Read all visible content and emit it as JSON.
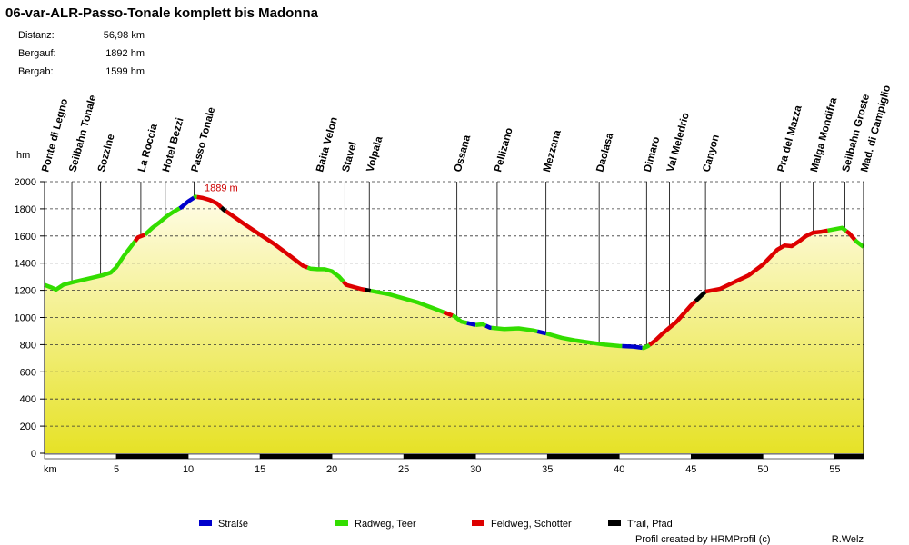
{
  "chart_data": {
    "type": "area",
    "title": "06-var-ALR-Passo-Tonale komplett bis Madonna",
    "stats": [
      {
        "label": "Distanz:",
        "value": "56,98 km"
      },
      {
        "label": "Bergauf:",
        "value": "1892 hm"
      },
      {
        "label": "Bergab:",
        "value": "1599 hm"
      }
    ],
    "xlabel": "km",
    "ylabel": "hm",
    "xlim": [
      0,
      57
    ],
    "ylim": [
      0,
      2000
    ],
    "x_ticks": [
      "5",
      "10",
      "15",
      "20",
      "25",
      "30",
      "35",
      "40",
      "45",
      "50",
      "55"
    ],
    "y_ticks": [
      "0",
      "200",
      "400",
      "600",
      "800",
      "1000",
      "1200",
      "1400",
      "1600",
      "1800",
      "2000"
    ],
    "max_label": "1889 m",
    "max_point": {
      "x": 10.5,
      "y": 1889
    },
    "profile": [
      [
        0,
        1240
      ],
      [
        0.5,
        1220
      ],
      [
        0.8,
        1205
      ],
      [
        1.3,
        1240
      ],
      [
        2,
        1260
      ],
      [
        3,
        1285
      ],
      [
        4,
        1310
      ],
      [
        4.6,
        1330
      ],
      [
        5,
        1370
      ],
      [
        5.5,
        1450
      ],
      [
        6,
        1520
      ],
      [
        6.5,
        1590
      ],
      [
        7,
        1610
      ],
      [
        7.5,
        1660
      ],
      [
        8,
        1700
      ],
      [
        8.5,
        1745
      ],
      [
        9,
        1780
      ],
      [
        9.5,
        1810
      ],
      [
        10,
        1855
      ],
      [
        10.5,
        1889
      ],
      [
        11,
        1880
      ],
      [
        11.5,
        1865
      ],
      [
        12,
        1840
      ],
      [
        12.5,
        1790
      ],
      [
        13,
        1755
      ],
      [
        14,
        1680
      ],
      [
        15,
        1610
      ],
      [
        16,
        1540
      ],
      [
        17,
        1460
      ],
      [
        18,
        1380
      ],
      [
        18.5,
        1360
      ],
      [
        19,
        1355
      ],
      [
        19.5,
        1355
      ],
      [
        20,
        1340
      ],
      [
        20.5,
        1300
      ],
      [
        21,
        1240
      ],
      [
        21.5,
        1225
      ],
      [
        22,
        1210
      ],
      [
        22.5,
        1200
      ],
      [
        23,
        1190
      ],
      [
        24,
        1170
      ],
      [
        25,
        1140
      ],
      [
        26,
        1110
      ],
      [
        27,
        1070
      ],
      [
        28,
        1030
      ],
      [
        28.5,
        1010
      ],
      [
        29,
        970
      ],
      [
        30,
        945
      ],
      [
        30.5,
        950
      ],
      [
        31,
        925
      ],
      [
        32,
        915
      ],
      [
        33,
        920
      ],
      [
        34,
        905
      ],
      [
        35,
        880
      ],
      [
        36,
        850
      ],
      [
        37,
        830
      ],
      [
        38,
        815
      ],
      [
        39,
        800
      ],
      [
        40,
        790
      ],
      [
        41,
        785
      ],
      [
        41.7,
        775
      ],
      [
        42,
        790
      ],
      [
        42.5,
        830
      ],
      [
        43,
        880
      ],
      [
        44,
        970
      ],
      [
        45,
        1090
      ],
      [
        46,
        1190
      ],
      [
        47,
        1210
      ],
      [
        48,
        1260
      ],
      [
        49,
        1310
      ],
      [
        50,
        1390
      ],
      [
        51,
        1500
      ],
      [
        51.5,
        1530
      ],
      [
        52,
        1525
      ],
      [
        52.5,
        1560
      ],
      [
        53,
        1600
      ],
      [
        53.5,
        1625
      ],
      [
        54,
        1630
      ],
      [
        55,
        1650
      ],
      [
        55.5,
        1660
      ],
      [
        56,
        1620
      ],
      [
        56.5,
        1560
      ],
      [
        57,
        1520
      ]
    ],
    "segments": [
      {
        "type": "radweg",
        "from": 0,
        "to": 6.3
      },
      {
        "type": "feldweg",
        "from": 6.3,
        "to": 7.0
      },
      {
        "type": "radweg",
        "from": 7.0,
        "to": 9.4
      },
      {
        "type": "strasse",
        "from": 9.4,
        "to": 10.4
      },
      {
        "type": "radweg",
        "from": 10.4,
        "to": 10.6
      },
      {
        "type": "feldweg",
        "from": 10.6,
        "to": 12.3
      },
      {
        "type": "trail",
        "from": 12.3,
        "to": 12.6
      },
      {
        "type": "feldweg",
        "from": 12.6,
        "to": 18.3
      },
      {
        "type": "radweg",
        "from": 18.3,
        "to": 20.8
      },
      {
        "type": "feldweg",
        "from": 20.8,
        "to": 22.3
      },
      {
        "type": "trail",
        "from": 22.3,
        "to": 22.7
      },
      {
        "type": "radweg",
        "from": 22.7,
        "to": 27.8
      },
      {
        "type": "feldweg",
        "from": 27.8,
        "to": 28.4
      },
      {
        "type": "radweg",
        "from": 28.4,
        "to": 29.4
      },
      {
        "type": "strasse",
        "from": 29.4,
        "to": 30.0
      },
      {
        "type": "radweg",
        "from": 30.0,
        "to": 30.7
      },
      {
        "type": "strasse",
        "from": 30.7,
        "to": 31.1
      },
      {
        "type": "radweg",
        "from": 31.1,
        "to": 34.3
      },
      {
        "type": "strasse",
        "from": 34.3,
        "to": 34.9
      },
      {
        "type": "radweg",
        "from": 34.9,
        "to": 40.2
      },
      {
        "type": "strasse",
        "from": 40.2,
        "to": 41.6
      },
      {
        "type": "radweg",
        "from": 41.6,
        "to": 42.1
      },
      {
        "type": "feldweg",
        "from": 42.1,
        "to": 45.3
      },
      {
        "type": "trail",
        "from": 45.3,
        "to": 46.0
      },
      {
        "type": "feldweg",
        "from": 46.0,
        "to": 48.0
      },
      {
        "type": "feldweg",
        "from": 48.0,
        "to": 54.5
      },
      {
        "type": "radweg",
        "from": 54.5,
        "to": 55.8
      },
      {
        "type": "feldweg",
        "from": 55.8,
        "to": 56.4
      },
      {
        "type": "radweg",
        "from": 56.4,
        "to": 57
      }
    ],
    "waypoints": [
      {
        "name": "Ponte di Legno",
        "km": 0.0
      },
      {
        "name": "Seilbahn Tonale",
        "km": 1.9
      },
      {
        "name": "Sozzine",
        "km": 3.9
      },
      {
        "name": "La Roccia",
        "km": 6.7
      },
      {
        "name": "Hotel Bezzi",
        "km": 8.4
      },
      {
        "name": "Passo Tonale",
        "km": 10.4
      },
      {
        "name": "Baita Velon",
        "km": 19.1
      },
      {
        "name": "Stavel",
        "km": 20.9
      },
      {
        "name": "Volpaia",
        "km": 22.6
      },
      {
        "name": "Ossana",
        "km": 28.7
      },
      {
        "name": "Pellizano",
        "km": 31.5
      },
      {
        "name": "Mezzana",
        "km": 34.9
      },
      {
        "name": "Daolasa",
        "km": 38.6
      },
      {
        "name": "Dimaro",
        "km": 41.9
      },
      {
        "name": "Val Meledrio",
        "km": 43.5
      },
      {
        "name": "Canyon",
        "km": 46.0
      },
      {
        "name": "Pra del Mazza",
        "km": 51.2
      },
      {
        "name": "Malga Mondifra",
        "km": 53.5
      },
      {
        "name": "Seilbahn Groste",
        "km": 55.7
      },
      {
        "name": "Mad. di Campiglio",
        "km": 57.0
      }
    ],
    "legend": [
      {
        "key": "strasse",
        "label": "Straße",
        "color": "#0000cc"
      },
      {
        "key": "radweg",
        "label": "Radweg, Teer",
        "color": "#33dd00"
      },
      {
        "key": "feldweg",
        "label": "Feldweg, Schotter",
        "color": "#dd0000"
      },
      {
        "key": "trail",
        "label": "Trail, Pfad",
        "color": "#000000"
      }
    ],
    "credit": "Profil created by HRMProfil (c)",
    "author": "R.Welz",
    "fill_top_color": "#fffce6",
    "fill_bottom_color": "#e6e226",
    "grid": true
  }
}
